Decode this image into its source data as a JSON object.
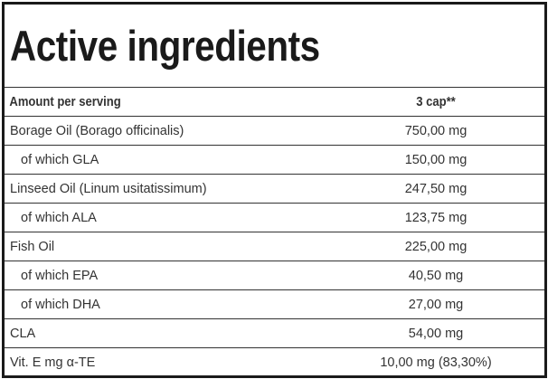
{
  "title": "Active ingredients",
  "header": {
    "label": "Amount per serving",
    "serving": "3 cap**"
  },
  "rows": [
    {
      "name": "Borage Oil (Borago officinalis)",
      "value": "750,00 mg",
      "sub": false
    },
    {
      "name": "of which GLA",
      "value": "150,00 mg",
      "sub": true
    },
    {
      "name": "Linseed Oil (Linum usitatissimum)",
      "value": "247,50 mg",
      "sub": false
    },
    {
      "name": "of which ALA",
      "value": "123,75 mg",
      "sub": true
    },
    {
      "name": "Fish Oil",
      "value": "225,00 mg",
      "sub": false
    },
    {
      "name": "of which EPA",
      "value": "40,50 mg",
      "sub": true
    },
    {
      "name": "of which DHA",
      "value": "27,00 mg",
      "sub": true
    },
    {
      "name": "CLA",
      "value": "54,00 mg",
      "sub": false
    },
    {
      "name": "Vit. E mg α-TE",
      "value": "10,00 mg (83,30%)",
      "sub": false
    }
  ]
}
